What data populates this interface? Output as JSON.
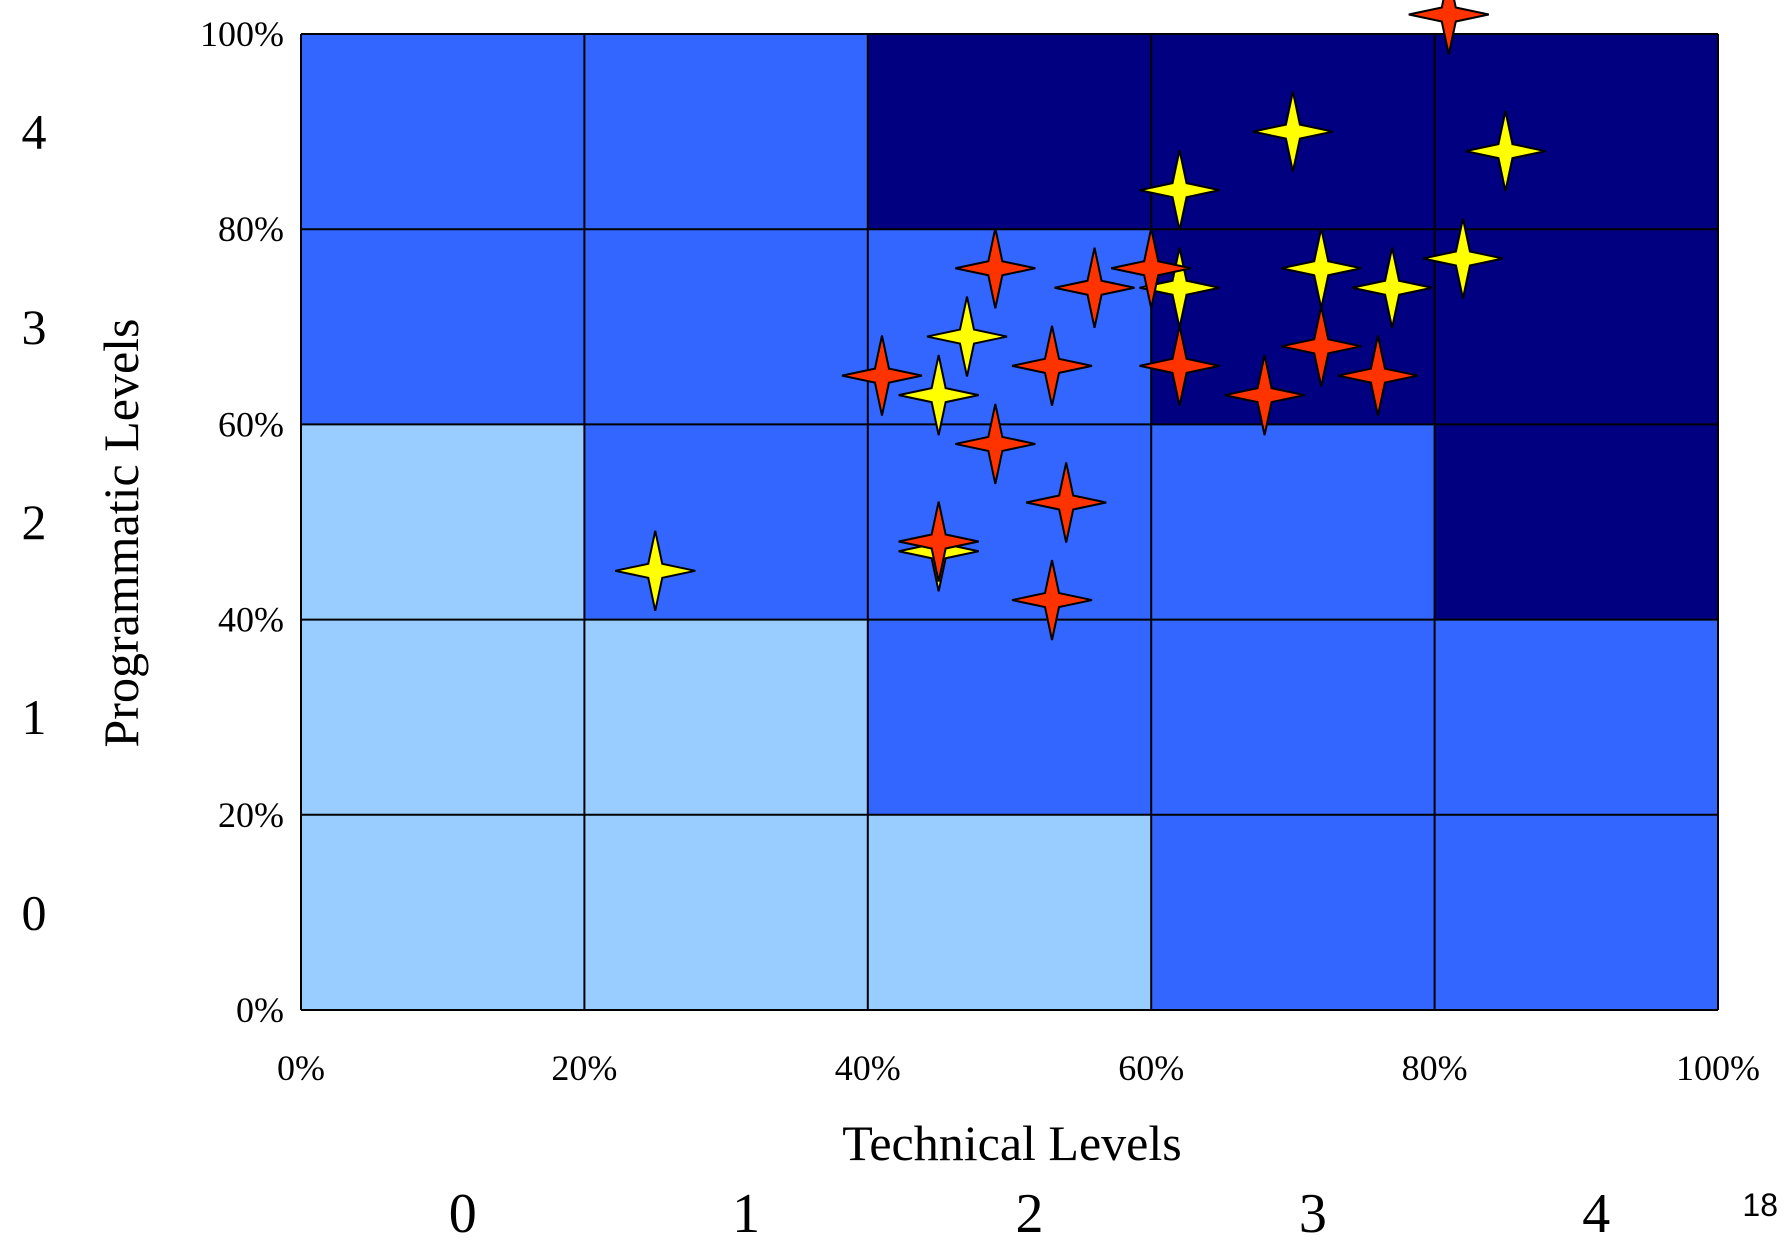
{
  "chart_data": {
    "type": "scatter",
    "xlabel": "Technical Levels",
    "ylabel": "Programmatic Levels",
    "xlim": [
      0,
      100
    ],
    "ylim": [
      0,
      100
    ],
    "x_ticks": [
      0,
      20,
      40,
      60,
      80,
      100
    ],
    "y_ticks": [
      0,
      20,
      40,
      60,
      80,
      100
    ],
    "x_tick_labels": [
      "0%",
      "20%",
      "40%",
      "60%",
      "80%",
      "100%"
    ],
    "y_tick_labels": [
      "0%",
      "20%",
      "40%",
      "60%",
      "80%",
      "100%"
    ],
    "x_bands": [
      [
        0,
        20
      ],
      [
        20,
        40
      ],
      [
        40,
        60
      ],
      [
        60,
        80
      ],
      [
        80,
        100
      ]
    ],
    "y_bands": [
      [
        0,
        20
      ],
      [
        20,
        40
      ],
      [
        40,
        60
      ],
      [
        60,
        80
      ],
      [
        80,
        100
      ]
    ],
    "x_level_labels": [
      "0",
      "1",
      "2",
      "3",
      "4"
    ],
    "y_level_labels": [
      "0",
      "1",
      "2",
      "3",
      "4"
    ],
    "zone_colors": {
      "low": "#99ccff",
      "mid": "#3366ff",
      "high": "#000080"
    },
    "zone_grid": [
      [
        "low",
        "low",
        "low",
        "mid",
        "mid"
      ],
      [
        "low",
        "low",
        "mid",
        "mid",
        "mid"
      ],
      [
        "low",
        "mid",
        "mid",
        "mid",
        "high"
      ],
      [
        "mid",
        "mid",
        "mid",
        "high",
        "high"
      ],
      [
        "mid",
        "mid",
        "high",
        "high",
        "high"
      ]
    ],
    "grid": true,
    "series": [
      {
        "color": "#ffff00",
        "marker": "four-point-star",
        "points": [
          [
            25,
            45
          ],
          [
            45,
            47
          ],
          [
            45,
            63
          ],
          [
            47,
            69
          ],
          [
            62,
            84
          ],
          [
            62,
            74
          ],
          [
            70,
            90
          ],
          [
            72,
            76
          ],
          [
            77,
            74
          ],
          [
            82,
            77
          ],
          [
            85,
            88
          ]
        ]
      },
      {
        "color": "#ff3300",
        "marker": "four-point-star",
        "points": [
          [
            41,
            65
          ],
          [
            45,
            48
          ],
          [
            49,
            76
          ],
          [
            49,
            58
          ],
          [
            53,
            66
          ],
          [
            53,
            42
          ],
          [
            54,
            52
          ],
          [
            56,
            74
          ],
          [
            60,
            76
          ],
          [
            62,
            66
          ],
          [
            68,
            63
          ],
          [
            72,
            68
          ],
          [
            76,
            65
          ],
          [
            81,
            102
          ]
        ]
      }
    ]
  },
  "page_number": "18"
}
